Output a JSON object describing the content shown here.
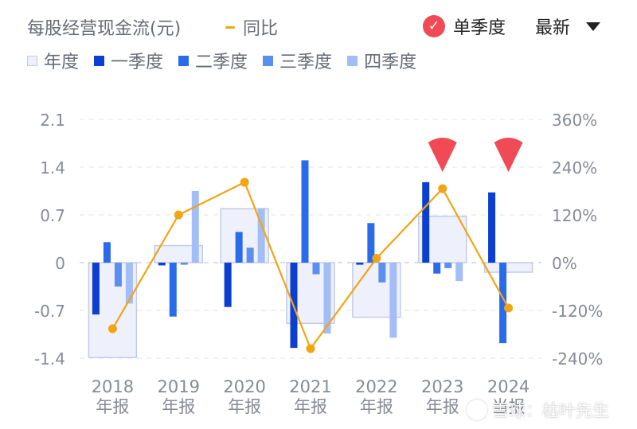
{
  "header": {
    "title": "每股经营现金流(元)",
    "yoy_label": "同比",
    "mode_label": "单季度",
    "mode_icon": "check-icon",
    "period_label": "最新",
    "period_icon": "caret-down-icon"
  },
  "colors": {
    "annual_fill": "#eef0fb",
    "annual_stroke": "#c3cbe6",
    "q1": "#0c3fcf",
    "q2": "#2a6bea",
    "q3": "#5a8ff0",
    "q4": "#a3bdf6",
    "yoy": "#f2a413",
    "marker": "#ef4a55",
    "grid": "#dfe3ea",
    "tick": "#868b96"
  },
  "chart_data": {
    "type": "bar",
    "categories": [
      "2018年报",
      "2019年报",
      "2020年报",
      "2021年报",
      "2022年报",
      "2023年报",
      "2024当报"
    ],
    "x_tick_labels": [
      [
        "2018",
        "年报"
      ],
      [
        "2019",
        "年报"
      ],
      [
        "2020",
        "年报"
      ],
      [
        "2021",
        "年报"
      ],
      [
        "2022",
        "年报"
      ],
      [
        "2023",
        "年报"
      ],
      [
        "2024",
        "当报"
      ]
    ],
    "series": [
      {
        "name": "年度",
        "kind": "bar",
        "values": [
          -1.39,
          0.25,
          0.79,
          -0.89,
          -0.8,
          0.68,
          -0.14
        ]
      },
      {
        "name": "一季度",
        "kind": "bar",
        "values": [
          -0.76,
          -0.04,
          -0.65,
          -1.25,
          -0.03,
          1.18,
          1.03
        ]
      },
      {
        "name": "二季度",
        "kind": "bar",
        "values": [
          0.3,
          -0.79,
          0.45,
          1.5,
          0.58,
          -0.16,
          -1.18
        ]
      },
      {
        "name": "三季度",
        "kind": "bar",
        "values": [
          -0.35,
          -0.03,
          0.22,
          -0.17,
          -0.29,
          -0.08,
          null
        ]
      },
      {
        "name": "四季度",
        "kind": "bar",
        "values": [
          -0.6,
          1.05,
          0.8,
          -1.04,
          -1.1,
          -0.27,
          null
        ]
      },
      {
        "name": "同比",
        "kind": "line",
        "axis": "right",
        "values": [
          -166,
          120,
          202,
          -216,
          11,
          186,
          -114
        ]
      }
    ],
    "y_left": {
      "min": -1.4,
      "max": 2.1,
      "ticks": [
        "2.1",
        "1.4",
        "0.7",
        "0",
        "-0.7",
        "-1.4"
      ],
      "tick_values": [
        2.1,
        1.4,
        0.7,
        0,
        -0.7,
        -1.4
      ]
    },
    "y_right": {
      "min": -240,
      "max": 360,
      "ticks": [
        "360%",
        "240%",
        "120%",
        "0%",
        "-120%",
        "-240%"
      ],
      "tick_values": [
        360,
        240,
        120,
        0,
        -120,
        -240
      ]
    },
    "markers": [
      {
        "category": "2023年报",
        "icon": "down-triangle-marker"
      },
      {
        "category": "2024当报",
        "icon": "down-triangle-marker"
      }
    ],
    "grid": "horizontal-dashed",
    "legend": "top-left"
  },
  "watermark": "雪球：枯叶先生"
}
